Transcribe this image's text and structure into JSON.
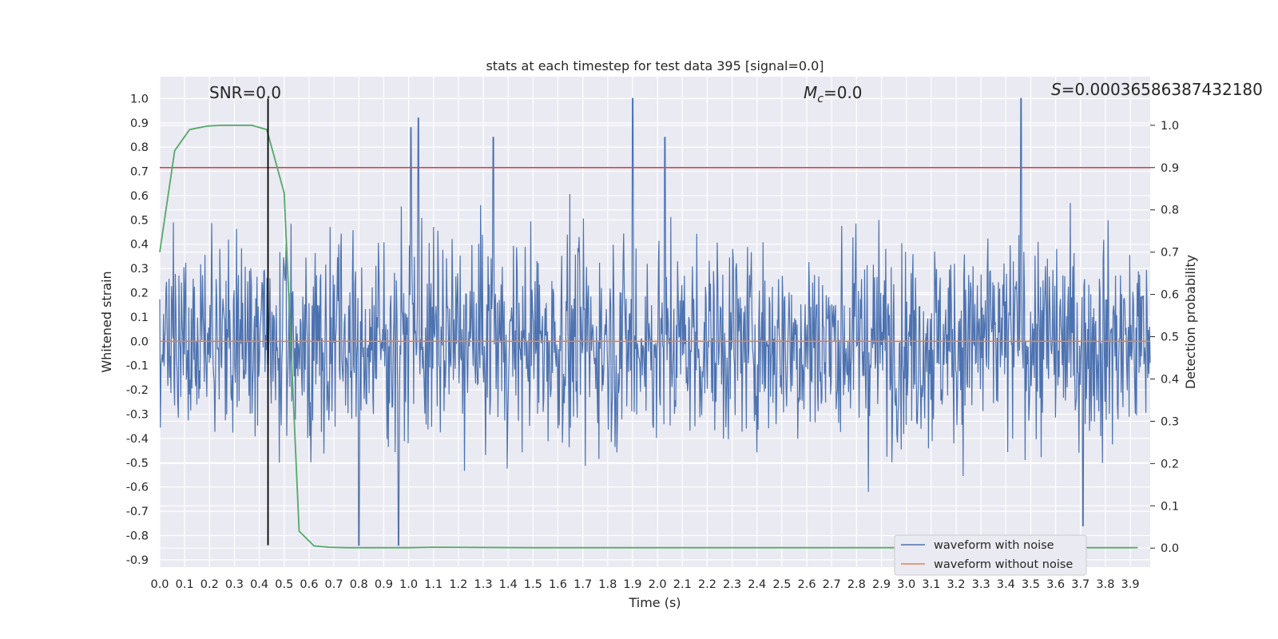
{
  "chart_data": {
    "type": "line",
    "title": "stats at each timestep for test data 395 [signal=0.0]",
    "xlabel": "Time (s)",
    "ylabel": "Whitened strain",
    "y2label": "Detection probability",
    "xlim": [
      0.0,
      3.98
    ],
    "ylim": [
      -0.93,
      1.09
    ],
    "y2lim": [
      -0.045,
      1.115
    ],
    "xticks": [
      0.0,
      0.1,
      0.2,
      0.3,
      0.4,
      0.5,
      0.6,
      0.7,
      0.8,
      0.9,
      1.0,
      1.1,
      1.2,
      1.3,
      1.4,
      1.5,
      1.6,
      1.7,
      1.8,
      1.9,
      2.0,
      2.1,
      2.2,
      2.3,
      2.4,
      2.5,
      2.6,
      2.7,
      2.8,
      2.9,
      3.0,
      3.1,
      3.2,
      3.3,
      3.4,
      3.5,
      3.6,
      3.7,
      3.8,
      3.9
    ],
    "yticks": [
      -0.9,
      -0.8,
      -0.7,
      -0.6,
      -0.5,
      -0.4,
      -0.3,
      -0.2,
      -0.1,
      0.0,
      0.1,
      0.2,
      0.3,
      0.4,
      0.5,
      0.6,
      0.7,
      0.8,
      0.9,
      1.0
    ],
    "y2ticks": [
      0.0,
      0.1,
      0.2,
      0.3,
      0.4,
      0.5,
      0.6,
      0.7,
      0.8,
      0.9,
      1.0
    ],
    "grid": true,
    "annotations": {
      "snr": "SNR=0.0",
      "mc_symbol": "M",
      "mc_sub": "c",
      "mc_value": "=0.0",
      "s_symbol": "S",
      "s_value": "=0.00036586387432180"
    },
    "series": [
      {
        "name": "waveform with noise",
        "axis": "left",
        "color": "#4c72b0",
        "kind": "noise",
        "description_range": [
          -0.84,
          1.0
        ],
        "peaks": [
          {
            "x": 1.9,
            "y": 1.0
          },
          {
            "x": 3.46,
            "y": 1.0
          },
          {
            "x": 1.04,
            "y": 0.92
          },
          {
            "x": 1.01,
            "y": 0.88
          },
          {
            "x": 2.03,
            "y": 0.84
          },
          {
            "x": 1.34,
            "y": 0.84
          },
          {
            "x": 0.8,
            "y": -0.84
          },
          {
            "x": 0.96,
            "y": -0.84
          },
          {
            "x": 3.71,
            "y": -0.76
          }
        ]
      },
      {
        "name": "waveform without noise",
        "axis": "left",
        "color": "#dd8452",
        "x": [
          0.0,
          3.98
        ],
        "y": [
          0.0,
          0.0
        ]
      },
      {
        "name": "detection probability",
        "axis": "right",
        "color": "#55a868",
        "x": [
          0.0,
          0.06,
          0.12,
          0.19,
          0.25,
          0.31,
          0.37,
          0.43,
          0.5,
          0.56,
          0.62,
          0.68,
          0.75,
          0.81,
          0.87,
          0.93,
          1.0,
          1.1,
          1.5,
          2.0,
          2.5,
          3.0,
          3.5,
          3.93
        ],
        "y": [
          0.7,
          0.94,
          0.99,
          0.998,
          1.0,
          1.0,
          1.0,
          0.99,
          0.84,
          0.04,
          0.005,
          0.002,
          0.001,
          0.001,
          0.001,
          0.001,
          0.001,
          0.002,
          0.001,
          0.001,
          0.001,
          0.001,
          0.001,
          0.001
        ]
      },
      {
        "name": "threshold",
        "axis": "right",
        "color": "#c44e52",
        "value": 0.9
      },
      {
        "name": "event marker",
        "axis": "left",
        "color": "#000000",
        "x": 0.435,
        "y_range": [
          -0.84,
          1.0
        ]
      }
    ],
    "legend": {
      "position": "lower-right",
      "entries": [
        "waveform with noise",
        "waveform without noise"
      ]
    }
  }
}
